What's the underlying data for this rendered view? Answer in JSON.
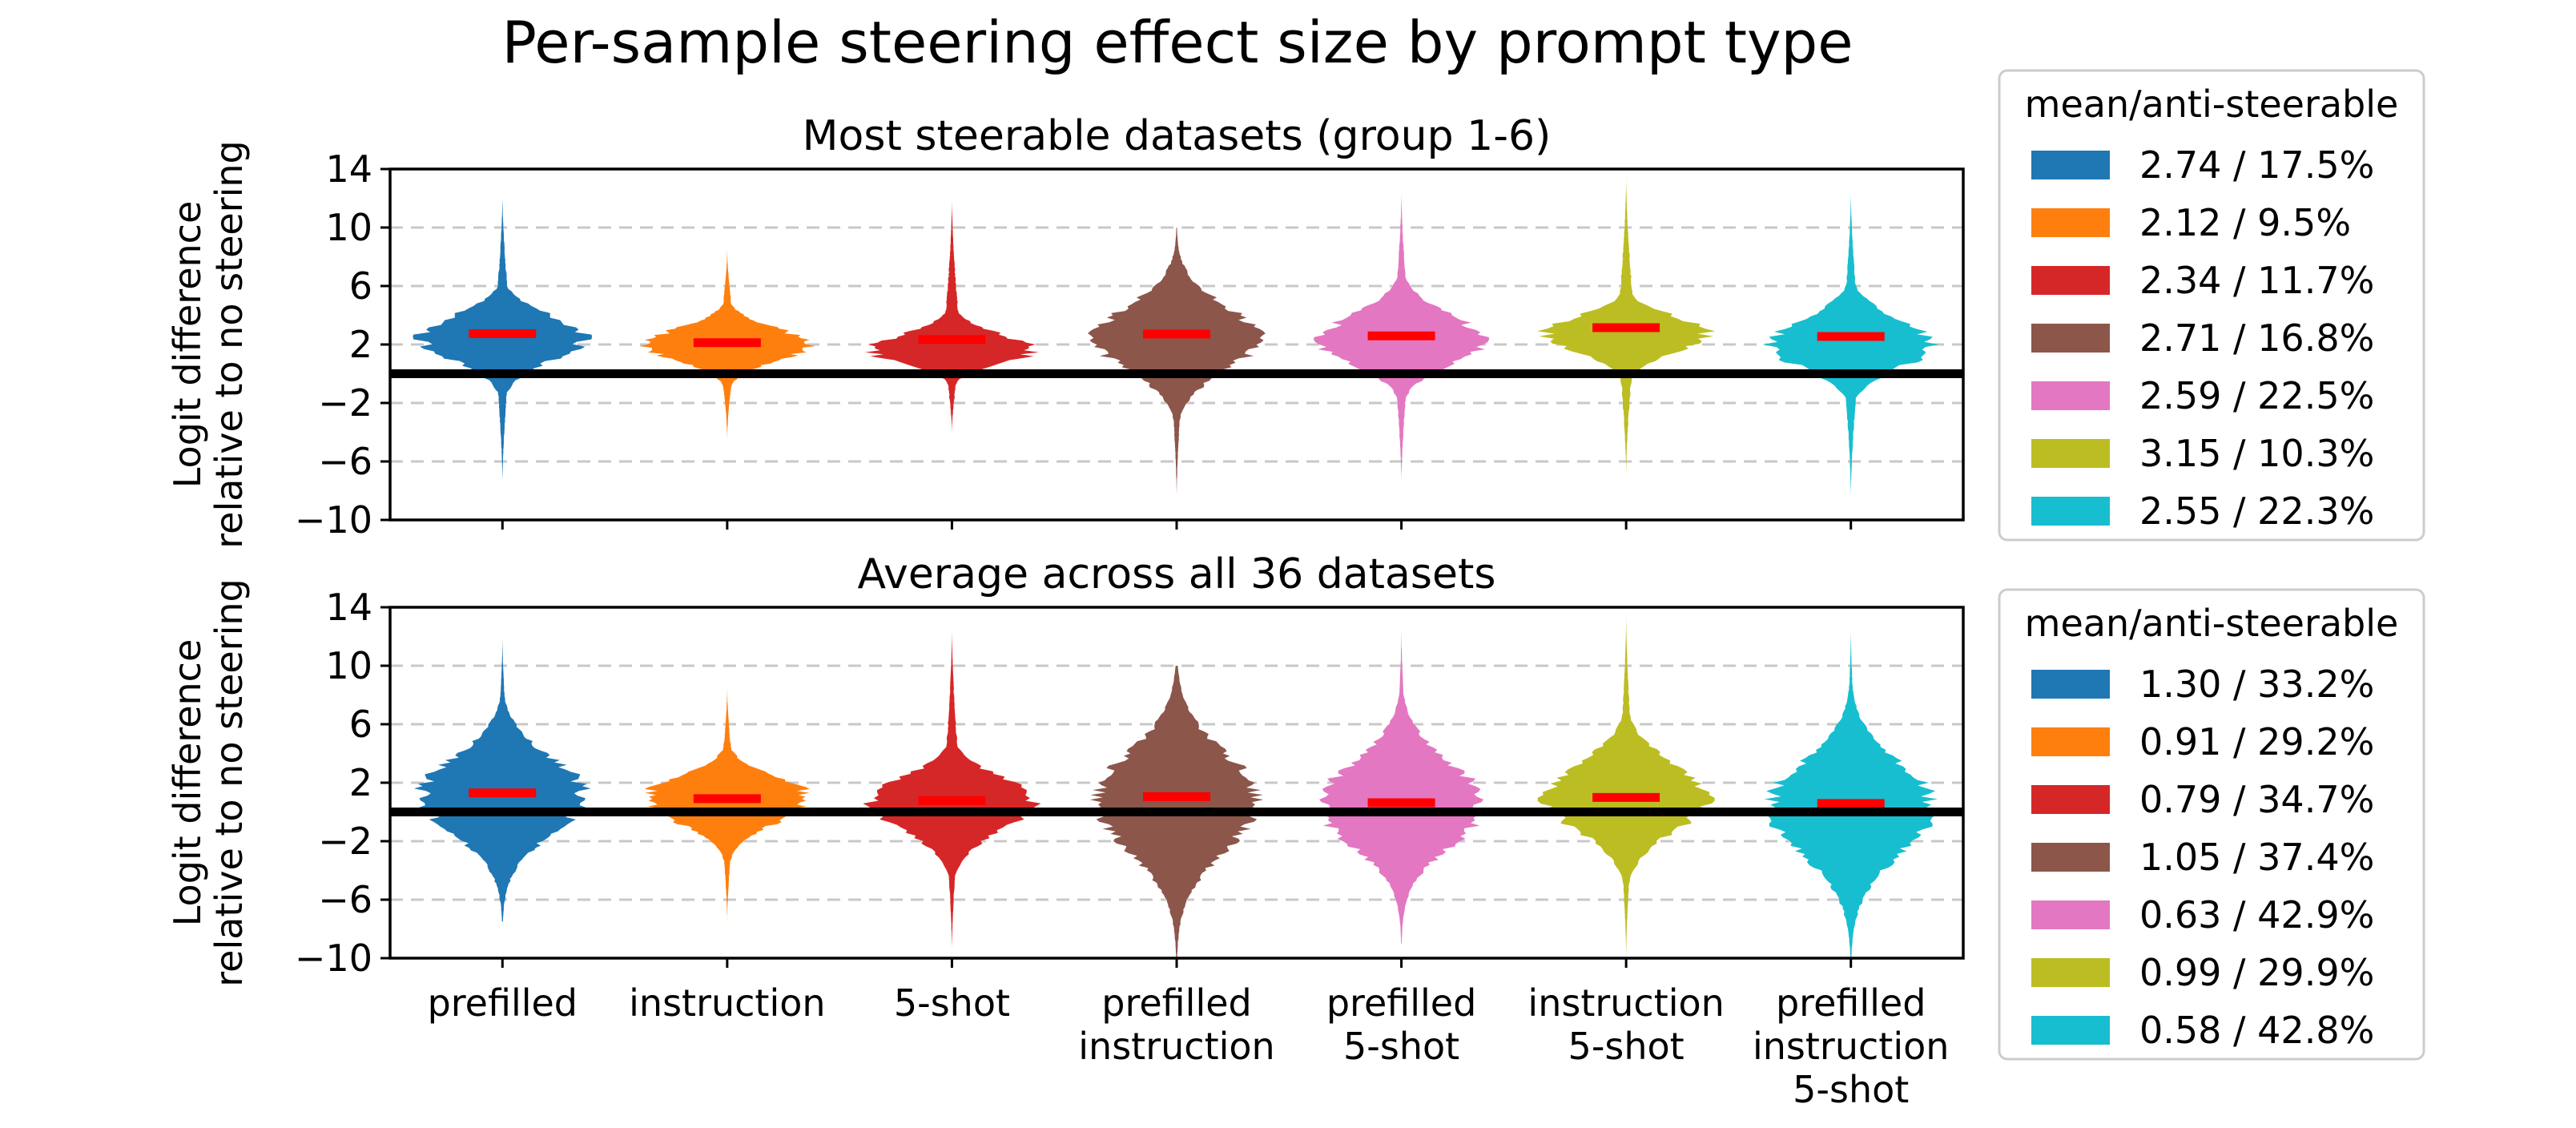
{
  "title": "Per-sample steering effect size by prompt type",
  "chart_data": [
    {
      "type": "violin",
      "subtitle": "Most steerable datasets (group 1-6)",
      "ylabel": [
        "Logit difference",
        "relative to no steering"
      ],
      "ylim": [
        -10,
        14
      ],
      "yticks": [
        -10,
        -6,
        -2,
        2,
        6,
        10,
        14
      ],
      "grid": "horizontal dashed",
      "zero_line": 0,
      "categories": [
        [
          "prefilled"
        ],
        [
          "instruction"
        ],
        [
          "5-shot"
        ],
        [
          "prefilled",
          "instruction"
        ],
        [
          "prefilled",
          "5-shot"
        ],
        [
          "instruction",
          "5-shot"
        ],
        [
          "prefilled",
          "instruction",
          "5-shot"
        ]
      ],
      "legend_title": "mean/anti-steerable",
      "legend_position": "right",
      "series": [
        {
          "label": "2.74 / 17.5%",
          "color": "#1f77b4",
          "mean": 2.74,
          "anti_steerable_pct": 17.5,
          "min": -7.5,
          "max": 12.2,
          "p25": 1.1,
          "median": 2.5,
          "p75": 3.8
        },
        {
          "label": "2.12 / 9.5%",
          "color": "#ff7f0e",
          "mean": 2.12,
          "anti_steerable_pct": 9.5,
          "min": -4.5,
          "max": 8.5,
          "p25": 1.0,
          "median": 2.0,
          "p75": 3.0
        },
        {
          "label": "2.34 / 11.7%",
          "color": "#d62728",
          "mean": 2.34,
          "anti_steerable_pct": 11.7,
          "min": -4.0,
          "max": 12.0,
          "p25": 0.8,
          "median": 1.6,
          "p75": 2.6
        },
        {
          "label": "2.71 / 16.8%",
          "color": "#8c564b",
          "mean": 2.71,
          "anti_steerable_pct": 16.8,
          "min": -8.5,
          "max": 10.0,
          "p25": 0.5,
          "median": 2.4,
          "p75": 4.4
        },
        {
          "label": "2.59 / 22.5%",
          "color": "#e377c2",
          "mean": 2.59,
          "anti_steerable_pct": 22.5,
          "min": -7.5,
          "max": 12.5,
          "p25": 0.8,
          "median": 2.2,
          "p75": 3.8
        },
        {
          "label": "3.15 / 10.3%",
          "color": "#bcbd22",
          "mean": 3.15,
          "anti_steerable_pct": 10.3,
          "min": -7.0,
          "max": 13.5,
          "p25": 1.6,
          "median": 2.8,
          "p75": 3.8
        },
        {
          "label": "2.55 / 22.3%",
          "color": "#17becf",
          "mean": 2.55,
          "anti_steerable_pct": 22.3,
          "min": -8.5,
          "max": 12.5,
          "p25": 0.6,
          "median": 2.0,
          "p75": 3.5
        }
      ]
    },
    {
      "type": "violin",
      "subtitle": "Average across all 36 datasets",
      "ylabel": [
        "Logit difference",
        "relative to no steering"
      ],
      "ylim": [
        -10,
        14
      ],
      "yticks": [
        -10,
        -6,
        -2,
        2,
        6,
        10,
        14
      ],
      "grid": "horizontal dashed",
      "zero_line": 0,
      "categories": [
        [
          "prefilled"
        ],
        [
          "instruction"
        ],
        [
          "5-shot"
        ],
        [
          "prefilled",
          "instruction"
        ],
        [
          "prefilled",
          "5-shot"
        ],
        [
          "instruction",
          "5-shot"
        ],
        [
          "prefilled",
          "instruction",
          "5-shot"
        ]
      ],
      "legend_title": "mean/anti-steerable",
      "legend_position": "right",
      "series": [
        {
          "label": "1.30 / 33.2%",
          "color": "#1f77b4",
          "mean": 1.3,
          "anti_steerable_pct": 33.2,
          "min": -7.5,
          "max": 12.0,
          "p25": -1.2,
          "median": 1.2,
          "p75": 3.4
        },
        {
          "label": "0.91 / 29.2%",
          "color": "#ff7f0e",
          "mean": 0.91,
          "anti_steerable_pct": 29.2,
          "min": -7.5,
          "max": 8.5,
          "p25": -0.5,
          "median": 1.0,
          "p75": 2.2
        },
        {
          "label": "0.79 / 34.7%",
          "color": "#d62728",
          "mean": 0.79,
          "anti_steerable_pct": 34.7,
          "min": -9.5,
          "max": 12.5,
          "p25": -1.0,
          "median": 0.8,
          "p75": 2.2
        },
        {
          "label": "1.05 / 37.4%",
          "color": "#8c564b",
          "mean": 1.05,
          "anti_steerable_pct": 37.4,
          "min": -10.0,
          "max": 10.0,
          "p25": -2.2,
          "median": 0.8,
          "p75": 3.6
        },
        {
          "label": "0.63 / 42.9%",
          "color": "#e377c2",
          "mean": 0.63,
          "anti_steerable_pct": 42.9,
          "min": -9.0,
          "max": 12.5,
          "p25": -2.0,
          "median": 0.5,
          "p75": 3.0
        },
        {
          "label": "0.99 / 29.9%",
          "color": "#bcbd22",
          "mean": 0.99,
          "anti_steerable_pct": 29.9,
          "min": -10.0,
          "max": 13.5,
          "p25": -1.0,
          "median": 1.0,
          "p75": 3.0
        },
        {
          "label": "0.58 / 42.8%",
          "color": "#17becf",
          "mean": 0.58,
          "anti_steerable_pct": 42.8,
          "min": -10.0,
          "max": 12.5,
          "p25": -2.5,
          "median": 0.4,
          "p75": 3.0
        }
      ]
    }
  ],
  "style": {
    "mean_marker_color": "#ff0000",
    "zero_line_color": "#000000",
    "grid_color": "#c8c8c8"
  }
}
